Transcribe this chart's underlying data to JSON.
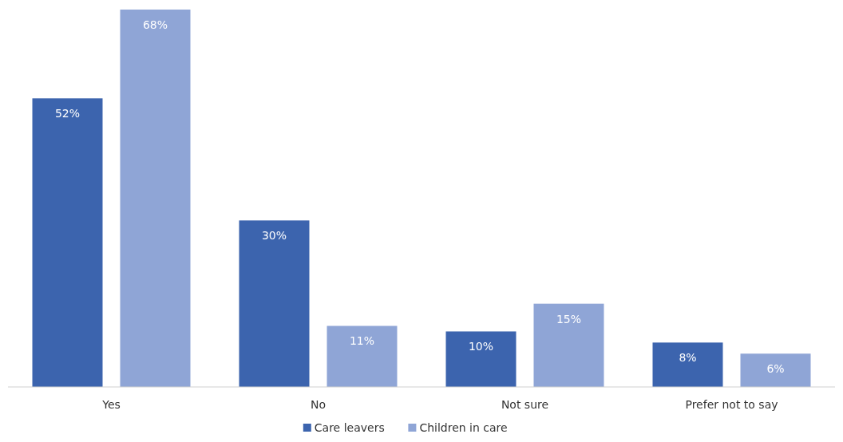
{
  "chart_data": {
    "type": "bar",
    "categories": [
      "Yes",
      "No",
      "Not sure",
      "Prefer not to say"
    ],
    "series": [
      {
        "name": "Care leavers",
        "color": "#3c64ae",
        "values": [
          52,
          30,
          10,
          8
        ],
        "value_labels": [
          "52%",
          "30%",
          "10%",
          "8%"
        ]
      },
      {
        "name": "Children in care",
        "color": "#8fa5d6",
        "values": [
          68,
          11,
          15,
          6
        ],
        "value_labels": [
          "68%",
          "11%",
          "15%",
          "6%"
        ]
      }
    ],
    "legend": "bottom"
  }
}
